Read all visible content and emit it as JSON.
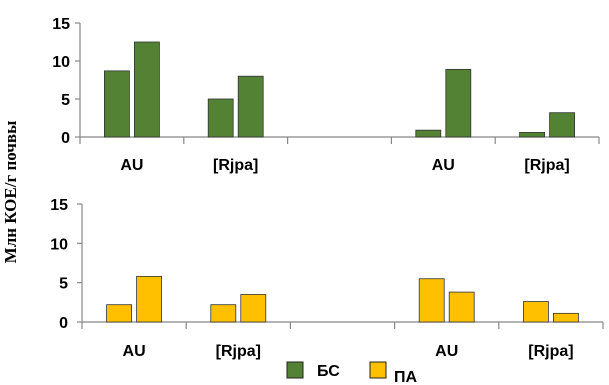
{
  "ylabel": "Млн КОЕ/г почвы",
  "legend": [
    {
      "label": "БС",
      "color": "#548235"
    },
    {
      "label": "ПА",
      "color": "#FFC000"
    }
  ],
  "chart_data": [
    {
      "type": "bar",
      "categories": [
        "AU",
        "[Rjpa]",
        "",
        "AU",
        "[Rjpa]"
      ],
      "series": [
        {
          "values": [
            8.7,
            5.0,
            null,
            0.9,
            0.6
          ],
          "color": "#548235"
        },
        {
          "values": [
            12.5,
            8.0,
            null,
            8.9,
            3.2
          ],
          "color": "#548235"
        }
      ],
      "ylim": [
        0,
        15
      ],
      "yticks": [
        0,
        5,
        10,
        15
      ]
    },
    {
      "type": "bar",
      "categories": [
        "AU",
        "[Rjpa]",
        "",
        "AU",
        "[Rjpa]"
      ],
      "series": [
        {
          "values": [
            2.2,
            2.2,
            null,
            5.5,
            2.6
          ],
          "color": "#FFC000"
        },
        {
          "values": [
            5.8,
            3.5,
            null,
            3.8,
            1.1
          ],
          "color": "#FFC000"
        }
      ],
      "ylim": [
        0,
        15
      ],
      "yticks": [
        0,
        5,
        10,
        15
      ]
    }
  ]
}
